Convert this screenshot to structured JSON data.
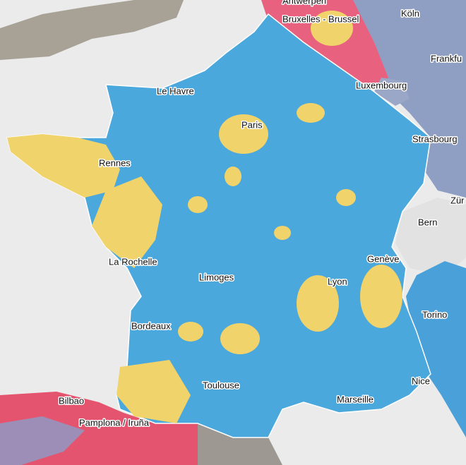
{
  "map": {
    "labels": [
      "Antwerpen",
      "Köln",
      "Bruxelles - Brussel",
      "Frankfu",
      "Le Havre",
      "Luxembourg",
      "Paris",
      "Strasbourg",
      "Rennes",
      "Zür",
      "Bern",
      "La Rochelle",
      "Genève",
      "Limoges",
      "Lyon",
      "Torino",
      "Bordeaux",
      "Nice",
      "Toulouse",
      "Bilbao",
      "Marseille",
      "Pamplona / Iruña"
    ]
  }
}
